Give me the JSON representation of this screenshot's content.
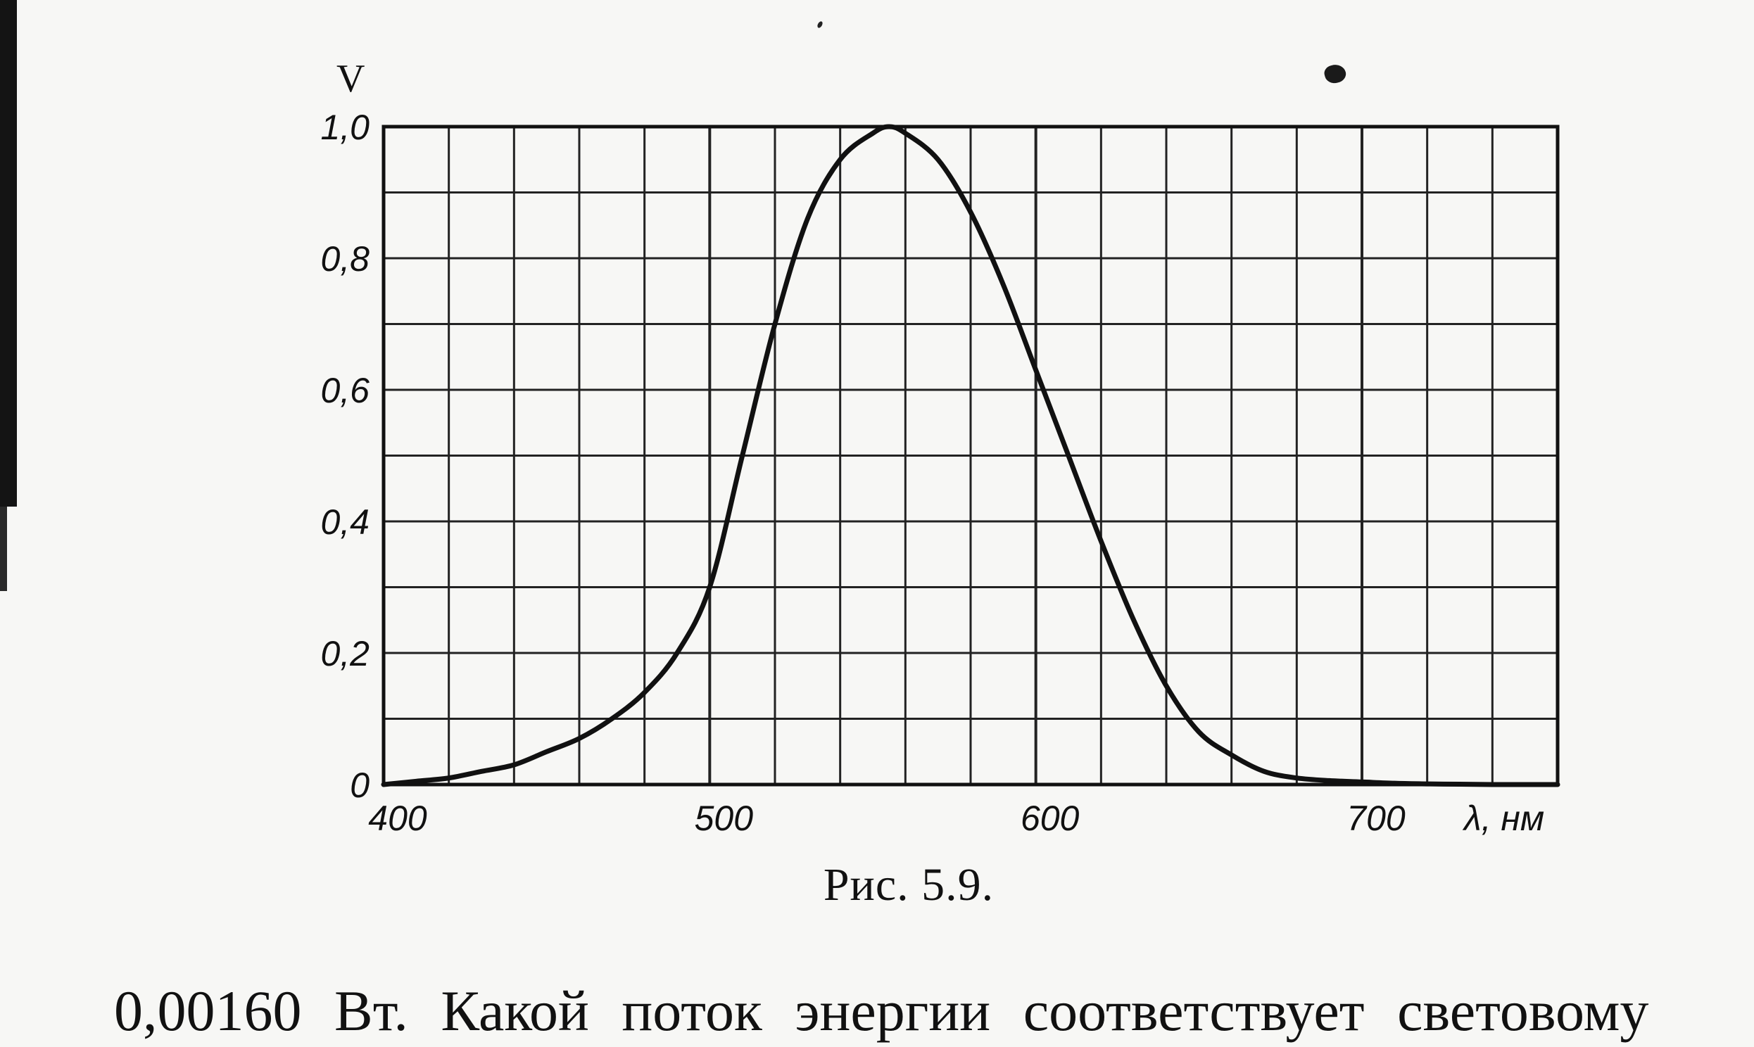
{
  "figure": {
    "caption": "Рис. 5.9.",
    "y_axis_title": "V",
    "x_axis_title": "λ, нм"
  },
  "body_text": "0,00160 Вт. Какой поток энергии соответствует световому",
  "chart_data": {
    "type": "line",
    "title": "",
    "xlabel": "λ, нм",
    "ylabel": "V",
    "xlim": [
      400,
      760
    ],
    "ylim": [
      0,
      1.0
    ],
    "grid": true,
    "x_ticks": [
      {
        "value": 400,
        "label": "400"
      },
      {
        "value": 500,
        "label": "500"
      },
      {
        "value": 600,
        "label": "600"
      },
      {
        "value": 700,
        "label": "700"
      }
    ],
    "y_ticks": [
      {
        "value": 0,
        "label": "0"
      },
      {
        "value": 0.2,
        "label": "0,2"
      },
      {
        "value": 0.4,
        "label": "0,4"
      },
      {
        "value": 0.6,
        "label": "0,6"
      },
      {
        "value": 0.8,
        "label": "0,8"
      },
      {
        "value": 1.0,
        "label": "1,0"
      }
    ],
    "series": [
      {
        "x": [
          400,
          410,
          420,
          430,
          440,
          450,
          460,
          470,
          480,
          490,
          500,
          510,
          520,
          530,
          540,
          550,
          555,
          560,
          570,
          580,
          590,
          600,
          610,
          620,
          630,
          640,
          650,
          660,
          670,
          680,
          690,
          700,
          710,
          720,
          730,
          740,
          750,
          760
        ],
        "values": [
          0.0,
          0.005,
          0.01,
          0.02,
          0.03,
          0.05,
          0.07,
          0.1,
          0.14,
          0.2,
          0.3,
          0.5,
          0.7,
          0.86,
          0.95,
          0.99,
          1.0,
          0.99,
          0.95,
          0.87,
          0.76,
          0.63,
          0.5,
          0.37,
          0.25,
          0.15,
          0.08,
          0.045,
          0.02,
          0.01,
          0.006,
          0.004,
          0.002,
          0.001,
          0.0005,
          0.0,
          0.0,
          0.0
        ]
      }
    ],
    "line_color": "#111111"
  }
}
